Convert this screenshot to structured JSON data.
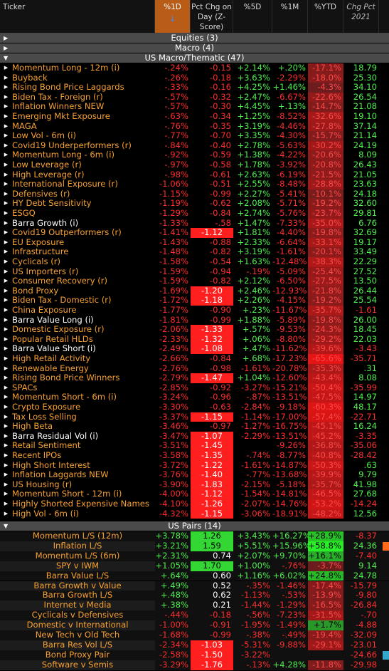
{
  "header": {
    "columns": [
      "Ticker",
      "%1D",
      "Pct Chg on Day (Z-Score)",
      "%5D",
      "%1M",
      "%YTD",
      "Chg Pct 2021"
    ],
    "sort_icon": "down-arrow-icon",
    "accent": "#b85c18"
  },
  "colors": {
    "negative": "#ff2e2e",
    "positive": "#4ef04e",
    "name": "#f7a132",
    "heat_red": "#c41e1e",
    "heat_green": "#3bd63b"
  },
  "sections": {
    "equities": "Equities (3)",
    "macro": "Macro (4)",
    "thematic": "US Macro/Thematic (47)",
    "pairs": "US Pairs (14)"
  },
  "rows": [
    {
      "name": "Momentum Long - 12m (i)",
      "d1": "-.24%",
      "z": "-0.15",
      "d5": "+2.14%",
      "m1": "+.20%",
      "ytd": "-17.1%",
      "y21": "18.79",
      "ytd_v": -17.1
    },
    {
      "name": "Buyback",
      "d1": "-.26%",
      "z": "-0.18",
      "d5": "+3.63%",
      "m1": "-2.29%",
      "ytd": "-18.0%",
      "y21": "25.30",
      "ytd_v": -18.0
    },
    {
      "name": "Rising Bond Price Laggards",
      "d1": "-.33%",
      "z": "-0.16",
      "d5": "+4.25%",
      "m1": "+1.46%",
      "ytd": "-4.3%",
      "y21": "34.10",
      "ytd_v": -4.3
    },
    {
      "name": "Biden Tax - Foreign (r)",
      "d1": "-.57%",
      "z": "-0.32",
      "d5": "+2.47%",
      "m1": "-6.67%",
      "ytd": "-22.6%",
      "y21": "26.54",
      "ytd_v": -22.6
    },
    {
      "name": "Inflation Winners NEW",
      "d1": "-.57%",
      "z": "-0.30",
      "d5": "+4.45%",
      "m1": "+.13%",
      "ytd": "-14.7%",
      "y21": "21.08",
      "ytd_v": -14.7
    },
    {
      "name": "Emerging Mkt Exposure",
      "d1": "-.63%",
      "z": "-0.34",
      "d5": "+1.25%",
      "m1": "-8.52%",
      "ytd": "-32.6%",
      "y21": "19.10",
      "ytd_v": -32.6
    },
    {
      "name": "MAGA",
      "d1": "-.76%",
      "z": "-0.35",
      "d5": "+3.19%",
      "m1": "-4.46%",
      "ytd": "-27.8%",
      "y21": "37.14",
      "ytd_v": -27.8
    },
    {
      "name": "Low Vol - 6m (i)",
      "d1": "-.77%",
      "z": "-0.70",
      "d5": "+3.35%",
      "m1": "-4.30%",
      "ytd": "-15.7%",
      "y21": "21.14",
      "ytd_v": -15.7
    },
    {
      "name": "Covid19 Underperformers (r)",
      "d1": "-.84%",
      "z": "-0.40",
      "d5": "+2.78%",
      "m1": "-5.63%",
      "ytd": "-30.2%",
      "y21": "24.19",
      "ytd_v": -30.2
    },
    {
      "name": "Momentum Long - 6m (i)",
      "d1": "-.92%",
      "z": "-0.59",
      "d5": "+1.38%",
      "m1": "-4.22%",
      "ytd": "-20.6%",
      "y21": "8.09",
      "ytd_v": -20.6
    },
    {
      "name": "Low Leverage (r)",
      "d1": "-.97%",
      "z": "-0.58",
      "d5": "+1.78%",
      "m1": "-3.92%",
      "ytd": "-20.8%",
      "y21": "26.43",
      "ytd_v": -20.8
    },
    {
      "name": "High Leverage (r)",
      "d1": "-.98%",
      "z": "-0.61",
      "d5": "+2.63%",
      "m1": "-6.19%",
      "ytd": "-21.5%",
      "y21": "21.05",
      "ytd_v": -21.5
    },
    {
      "name": "International Exposure (r)",
      "d1": "-1.06%",
      "z": "-0.51",
      "d5": "+2.55%",
      "m1": "-8.48%",
      "ytd": "-28.8%",
      "y21": "23.63",
      "ytd_v": -28.8
    },
    {
      "name": "Defensives (r)",
      "d1": "-1.15%",
      "z": "-0.99",
      "d5": "+2.27%",
      "m1": "-5.41%",
      "ytd": "-10.1%",
      "y21": "24.18",
      "ytd_v": -10.1
    },
    {
      "name": "HY Debt Sensitivity",
      "d1": "-1.19%",
      "z": "-0.62",
      "d5": "+2.08%",
      "m1": "-5.71%",
      "ytd": "-19.2%",
      "y21": "32.60",
      "ytd_v": -19.2
    },
    {
      "name": "ESGQ",
      "d1": "-1.29%",
      "z": "-0.84",
      "d5": "+2.74%",
      "m1": "-5.76%",
      "ytd": "-23.7%",
      "y21": "29.81",
      "ytd_v": -23.7
    },
    {
      "name": "Barra Growth (i)",
      "d1": "-1.33%",
      "z": "-.58",
      "d5": "+1.47%",
      "m1": "-7.33%",
      "ytd": "-35.0%",
      "y21": "6.76",
      "ytd_v": -35.0,
      "white": true
    },
    {
      "name": "Covid19 Outperformers (r)",
      "d1": "-1.41%",
      "z": "-1.12",
      "d5": "+1.81%",
      "m1": "-4.40%",
      "ytd": "-19.8%",
      "y21": "32.69",
      "ytd_v": -19.8,
      "zhl": true
    },
    {
      "name": "EU Exposure",
      "d1": "-1.43%",
      "z": "-0.88",
      "d5": "+2.33%",
      "m1": "-6.64%",
      "ytd": "-33.1%",
      "y21": "19.17",
      "ytd_v": -33.1
    },
    {
      "name": "Infrastructure",
      "d1": "-1.48%",
      "z": "-0.82",
      "d5": "+3.19%",
      "m1": "-1.61%",
      "ytd": "-20.1%",
      "y21": "33.49",
      "ytd_v": -20.1
    },
    {
      "name": "Cyclicals (r)",
      "d1": "-1.58%",
      "z": "-0.54",
      "d5": "+1.63%",
      "m1": "-12.48%",
      "ytd": "-38.3%",
      "y21": "22.29",
      "ytd_v": -38.3
    },
    {
      "name": "US Importers (r)",
      "d1": "-1.59%",
      "z": "-0.94",
      "d5": "-.19%",
      "m1": "-5.09%",
      "ytd": "-25.4%",
      "y21": "27.52",
      "ytd_v": -25.4
    },
    {
      "name": "Consumer Recovery (r)",
      "d1": "-1.59%",
      "z": "-0.82",
      "d5": "+2.12%",
      "m1": "-6.50%",
      "ytd": "-27.5%",
      "y21": "13.50",
      "ytd_v": -27.5
    },
    {
      "name": "Bond Proxy",
      "d1": "-1.69%",
      "z": "-1.20",
      "d5": "+2.46%",
      "m1": "-12.93%",
      "ytd": "-21.8%",
      "y21": "26.44",
      "ytd_v": -21.8,
      "zhl": true
    },
    {
      "name": "Biden Tax - Domestic (r)",
      "d1": "-1.72%",
      "z": "-1.18",
      "d5": "+2.26%",
      "m1": "-4.15%",
      "ytd": "-19.2%",
      "y21": "25.54",
      "ytd_v": -19.2,
      "zhl": true
    },
    {
      "name": "China Exposure",
      "d1": "-1.77%",
      "z": "-0.90",
      "d5": "+.23%",
      "m1": "-11.67%",
      "ytd": "-35.7%",
      "y21": "-1.61",
      "ytd_v": -35.7
    },
    {
      "name": "Barra Value Long (i)",
      "d1": "-1.81%",
      "z": "-0.99",
      "d5": "+1.88%",
      "m1": "-5.89%",
      "ytd": "-19.8%",
      "y21": "26.00",
      "ytd_v": -19.8,
      "white": true
    },
    {
      "name": "Domestic Exposure (r)",
      "d1": "-2.06%",
      "z": "-1.33",
      "d5": "+.57%",
      "m1": "-9.53%",
      "ytd": "-24.3%",
      "y21": "18.45",
      "ytd_v": -24.3,
      "zhl": true
    },
    {
      "name": "Popular Retail HLDs",
      "d1": "-2.33%",
      "z": "-1.32",
      "d5": "+.06%",
      "m1": "-8.80%",
      "ytd": "-29.2%",
      "y21": "22.03",
      "ytd_v": -29.2,
      "zhl": true
    },
    {
      "name": "Barra Value Short (i)",
      "d1": "-2.49%",
      "z": "-1.08",
      "d5": "+.47%",
      "m1": "-11.62%",
      "ytd": "-39.6%",
      "y21": "-3.43",
      "ytd_v": -39.6,
      "zhl": true,
      "white": true
    },
    {
      "name": "High Retail Activity",
      "d1": "-2.66%",
      "z": "-0.84",
      "d5": "+.68%",
      "m1": "-17.23%",
      "ytd": "-65.6%",
      "y21": "-35.71",
      "ytd_v": -65.6
    },
    {
      "name": "Renewable Energy",
      "d1": "-2.76%",
      "z": "-0.98",
      "d5": "-1.61%",
      "m1": "-20.78%",
      "ytd": "-35.3%",
      "y21": ".31",
      "ytd_v": -35.3
    },
    {
      "name": "Rising Bond Price Winners",
      "d1": "-2.79%",
      "z": "-1.47",
      "d5": "+1.04%",
      "m1": "-12.60%",
      "ytd": "-43.4%",
      "y21": "8.08",
      "ytd_v": -43.4,
      "zhl": true
    },
    {
      "name": "SPACs",
      "d1": "-2.85%",
      "z": "-0.92",
      "d5": "-3.27%",
      "m1": "-15.21%",
      "ytd": "-50.4%",
      "y21": "-35.99",
      "ytd_v": -50.4
    },
    {
      "name": "Momentum Short - 6m (i)",
      "d1": "-3.24%",
      "z": "-0.96",
      "d5": "-.87%",
      "m1": "-13.51%",
      "ytd": "-47.5%",
      "y21": "14.97",
      "ytd_v": -47.5
    },
    {
      "name": "Crypto Exposure",
      "d1": "-3.30%",
      "z": "-0.63",
      "d5": "-2.84%",
      "m1": "-9.18%",
      "ytd": "-60.3%",
      "y21": "48.17",
      "ytd_v": -60.3
    },
    {
      "name": "Tax Loss Selling",
      "d1": "-3.37%",
      "z": "-1.15",
      "d5": "-1.14%",
      "m1": "-17.00%",
      "ytd": "-57.4%",
      "y21": "-22.71",
      "ytd_v": -57.4,
      "zhl": true
    },
    {
      "name": "High Beta",
      "d1": "-3.46%",
      "z": "-0.97",
      "d5": "-1.27%",
      "m1": "-16.75%",
      "ytd": "-45.1%",
      "y21": "16.24",
      "ytd_v": -45.1
    },
    {
      "name": "Barra Residual Vol (i)",
      "d1": "-3.47%",
      "z": "-1.07",
      "d5": "-2.29%",
      "m1": "-13.51%",
      "ytd": "-45.2%",
      "y21": "-3.35",
      "ytd_v": -45.2,
      "zhl": true,
      "white": true
    },
    {
      "name": "Retail Sentiment",
      "d1": "-3.51%",
      "z": "-1.45",
      "d5": "",
      "m1": "-9.26%",
      "ytd": "-36.8%",
      "y21": "-35.06",
      "ytd_v": -36.8,
      "zhl": true
    },
    {
      "name": "Recent IPOs",
      "d1": "-3.58%",
      "z": "-1.35",
      "d5": "-.74%",
      "m1": "-8.77%",
      "ytd": "-40.8%",
      "y21": "-28.42",
      "ytd_v": -40.8,
      "zhl": true
    },
    {
      "name": "High Short Interest",
      "d1": "-3.72%",
      "z": "-1.22",
      "d5": "-1.61%",
      "m1": "-14.87%",
      "ytd": "-50.3%",
      "y21": ".63",
      "ytd_v": -50.3,
      "zhl": true
    },
    {
      "name": "Inflation Laggards NEW",
      "d1": "-3.76%",
      "z": "-1.40",
      "d5": "-.77%",
      "m1": "-13.68%",
      "ytd": "-39.9%",
      "y21": "9.79",
      "ytd_v": -39.9,
      "zhl": true
    },
    {
      "name": "US Housing (r)",
      "d1": "-3.90%",
      "z": "-1.83",
      "d5": "-2.15%",
      "m1": "-5.18%",
      "ytd": "-35.7%",
      "y21": "41.98",
      "ytd_v": -35.7,
      "zhl": true
    },
    {
      "name": "Momentum Short - 12m (i)",
      "d1": "-4.00%",
      "z": "-1.12",
      "d5": "-1.54%",
      "m1": "-14.81%",
      "ytd": "-46.5%",
      "y21": "27.68",
      "ytd_v": -46.5,
      "zhl": true
    },
    {
      "name": "Highly Shorted Expensive Names",
      "d1": "-4.10%",
      "z": "-1.26",
      "d5": "-2.07%",
      "m1": "-14.76%",
      "ytd": "-53.2%",
      "y21": "-14.24",
      "ytd_v": -53.2,
      "zhl": true
    },
    {
      "name": "High Vol - 6m (i)",
      "d1": "-4.32%",
      "z": "-1.15",
      "d5": "-3.06%",
      "m1": "-18.91%",
      "ytd": "-48.2%",
      "y21": "12.56",
      "ytd_v": -48.2,
      "zhl": true
    }
  ],
  "pairs": [
    {
      "name": "Momentum L/S (12m)",
      "d1": "+3.78%",
      "z": "1.26",
      "d5": "+3.43%",
      "m1": "+16.27%",
      "ytd": "+28.9%",
      "y21": "-8.37",
      "ytd_v": 28.9,
      "zhl": true
    },
    {
      "name": "Inflation L/S",
      "d1": "+3.21%",
      "z": "1.59",
      "d5": "+5.51%",
      "m1": "+15.96%",
      "ytd": "+58.8%",
      "y21": "24.36",
      "ytd_v": 58.8,
      "zhl": true,
      "marker": "#ff6a1a"
    },
    {
      "name": "Momentum L/S (6m)",
      "d1": "+2.31%",
      "z": "0.74",
      "d5": "+2.07%",
      "m1": "+9.70%",
      "ytd": "+16.1%",
      "y21": "-7.40",
      "ytd_v": 16.1
    },
    {
      "name": "SPY v IWM",
      "d1": "+1.05%",
      "z": "1.70",
      "d5": "+1.00%",
      "m1": "-.76%",
      "ytd": "-3.7%",
      "y21": "9.14",
      "ytd_v": -3.7,
      "zhl": true
    },
    {
      "name": "Barra Value L/S",
      "d1": "+.64%",
      "z": "0.60",
      "d5": "+1.16%",
      "m1": "+6.02%",
      "ytd": "+24.8%",
      "y21": "24.78",
      "ytd_v": 24.8
    },
    {
      "name": "Barra Growth v Value",
      "d1": "+.49%",
      "z": "0.52",
      "d5": "-.35%",
      "m1": "-1.46%",
      "ytd": "-17.4%",
      "y21": "-15.79",
      "ytd_v": -17.4
    },
    {
      "name": "Barra Growth L/S",
      "d1": "+.48%",
      "z": "0.62",
      "d5": "-1.13%",
      "m1": "-.53%",
      "ytd": "-13.9%",
      "y21": "-9.80",
      "ytd_v": -13.9
    },
    {
      "name": "Internet v Media",
      "d1": "+.38%",
      "z": "0.21",
      "d5": "-1.44%",
      "m1": "-1.29%",
      "ytd": "-16.5%",
      "y21": "-26.84",
      "ytd_v": -16.5
    },
    {
      "name": "Cyclicals v Defensives",
      "d1": "-.44%",
      "z": "-0.18",
      "d5": "-.56%",
      "m1": "-7.23%",
      "ytd": "-31.5%",
      "y21": "-.70",
      "ytd_v": -31.5
    },
    {
      "name": "Domestic v International",
      "d1": "-1.00%",
      "z": "-0.91",
      "d5": "-1.95%",
      "m1": "-1.49%",
      "ytd": "+1.7%",
      "y21": "-4.88",
      "ytd_v": 1.7
    },
    {
      "name": "New Tech v Old Tech",
      "d1": "-1.68%",
      "z": "-0.99",
      "d5": "-.38%",
      "m1": "-.49%",
      "ytd": "-19.4%",
      "y21": "-32.09",
      "ytd_v": -19.4
    },
    {
      "name": "Barra Res Vol L/S",
      "d1": "-2.34%",
      "z": "-1.03",
      "d5": "-5.31%",
      "m1": "-9.88%",
      "ytd": "-29.1%",
      "y21": "-23.01",
      "ytd_v": -29.1,
      "zhl": true
    },
    {
      "name": "Bond Proxy Pair",
      "d1": "-2.58%",
      "z": "-1.50",
      "d5": "-3.22%",
      "m1": "",
      "ytd": "",
      "y21": "-24.66",
      "ytd_v": 0,
      "zhl": true,
      "marker": "#33aacc"
    },
    {
      "name": "Software v Semis",
      "d1": "-3.29%",
      "z": "-1.76",
      "d5": "-.13%",
      "m1": "+4.28%",
      "ytd": "-11.8%",
      "y21": "-29.98",
      "ytd_v": -11.8,
      "zhl": true
    }
  ]
}
